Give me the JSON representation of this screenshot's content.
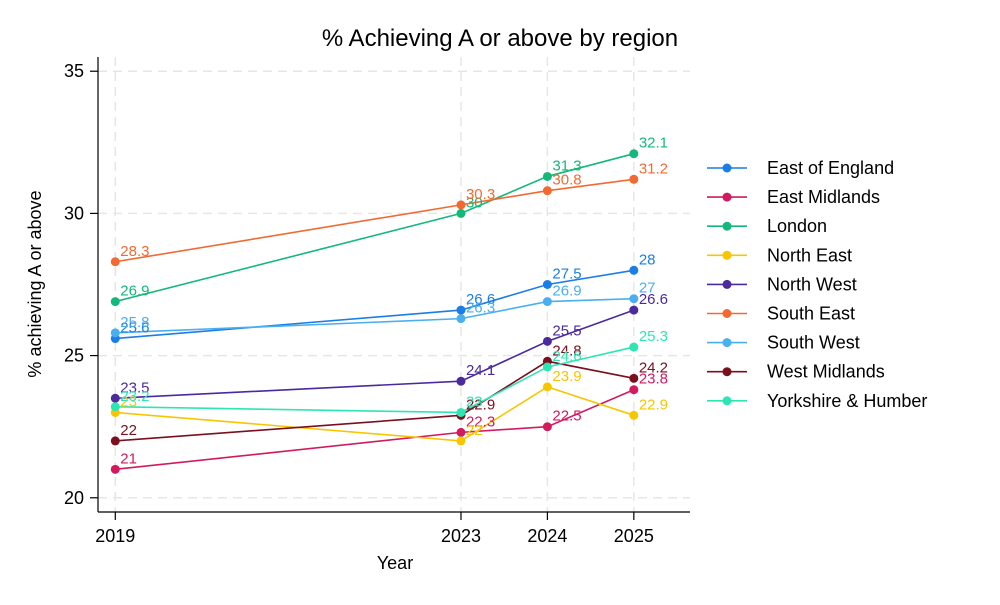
{
  "chart_data": {
    "type": "line",
    "title": "% Achieving A or above by region",
    "xlabel": "Year",
    "ylabel": "% achieving A or above",
    "x": [
      2019,
      2023,
      2024,
      2025
    ],
    "xlim": [
      2018.8,
      2025.65
    ],
    "ylim": [
      19.5,
      35.5
    ],
    "xticks": [
      "2019",
      "2023",
      "2024",
      "2025"
    ],
    "yticks": [
      "20",
      "25",
      "30",
      "35"
    ],
    "grid": true,
    "legend_position": "right",
    "series": [
      {
        "name": "East of England",
        "color": "#1a7ee6",
        "values": [
          25.6,
          26.6,
          27.5,
          28
        ],
        "labels": [
          "25.6",
          "26.6",
          "27.5",
          "28"
        ]
      },
      {
        "name": "East Midlands",
        "color": "#d21a5f",
        "values": [
          21,
          22.3,
          22.5,
          23.8
        ],
        "labels": [
          "21",
          "22.3",
          "22.5",
          "23.8"
        ]
      },
      {
        "name": "London",
        "color": "#14b87a",
        "values": [
          26.9,
          30,
          31.3,
          32.1
        ],
        "labels": [
          "26.9",
          "30",
          "31.3",
          "32.1"
        ]
      },
      {
        "name": "North East",
        "color": "#f7c600",
        "values": [
          23,
          22,
          23.9,
          22.9
        ],
        "labels": [
          "23",
          "22",
          "23.9",
          "22.9"
        ]
      },
      {
        "name": "North West",
        "color": "#4b2a9e",
        "values": [
          23.5,
          24.1,
          25.5,
          26.6
        ],
        "labels": [
          "23.5",
          "24.1",
          "25.5",
          "26.6"
        ]
      },
      {
        "name": "South East",
        "color": "#f26a32",
        "values": [
          28.3,
          30.3,
          30.8,
          31.2
        ],
        "labels": [
          "28.3",
          "30.3",
          "30.8",
          "31.2"
        ]
      },
      {
        "name": "South West",
        "color": "#4aafef",
        "values": [
          25.8,
          26.3,
          26.9,
          27
        ],
        "labels": [
          "25.8",
          "26.3",
          "26.9",
          "27"
        ]
      },
      {
        "name": "West Midlands",
        "color": "#7a0f1e",
        "values": [
          22,
          22.9,
          24.8,
          24.2
        ],
        "labels": [
          "22",
          "22.9",
          "24.8",
          "24.2"
        ]
      },
      {
        "name": "Yorkshire & Humber",
        "color": "#2ee6b4",
        "values": [
          23.2,
          23,
          24.6,
          25.3
        ],
        "labels": [
          "23.2",
          "23",
          "24.6",
          "25.3"
        ]
      }
    ]
  }
}
